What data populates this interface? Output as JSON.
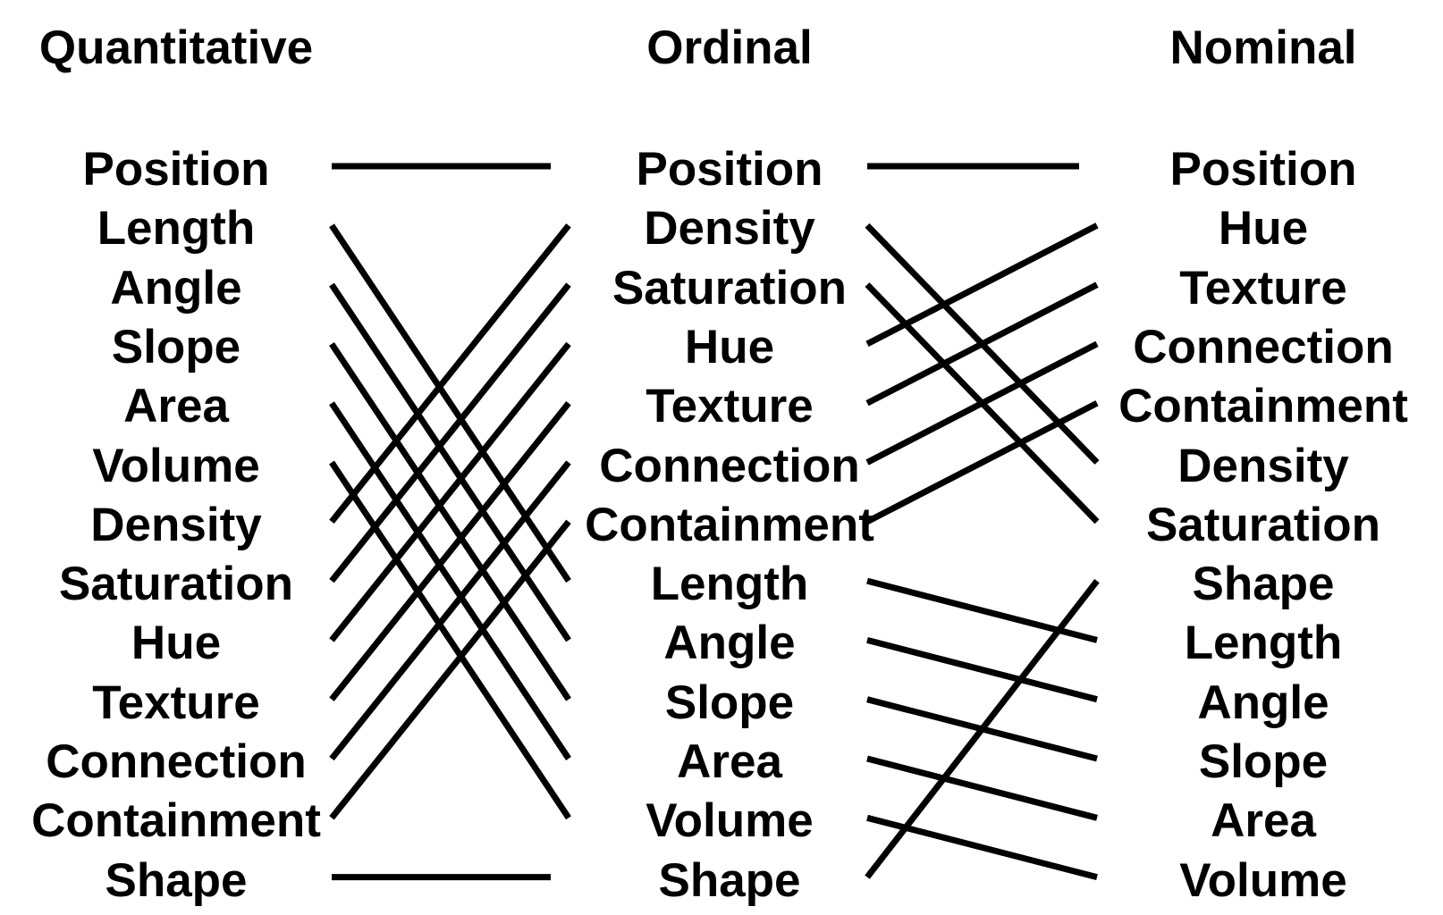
{
  "columns": [
    {
      "title": "Quantitative",
      "items": [
        "Position",
        "Length",
        "Angle",
        "Slope",
        "Area",
        "Volume",
        "Density",
        "Saturation",
        "Hue",
        "Texture",
        "Connection",
        "Containment",
        "Shape"
      ]
    },
    {
      "title": "Ordinal",
      "items": [
        "Position",
        "Density",
        "Saturation",
        "Hue",
        "Texture",
        "Connection",
        "Containment",
        "Length",
        "Angle",
        "Slope",
        "Area",
        "Volume",
        "Shape"
      ]
    },
    {
      "title": "Nominal",
      "items": [
        "Position",
        "Hue",
        "Texture",
        "Connection",
        "Containment",
        "Density",
        "Saturation",
        "Shape",
        "Length",
        "Angle",
        "Slope",
        "Area",
        "Volume"
      ]
    }
  ],
  "colors": {
    "text": "#000000",
    "line": "#000000",
    "background": "#ffffff"
  }
}
